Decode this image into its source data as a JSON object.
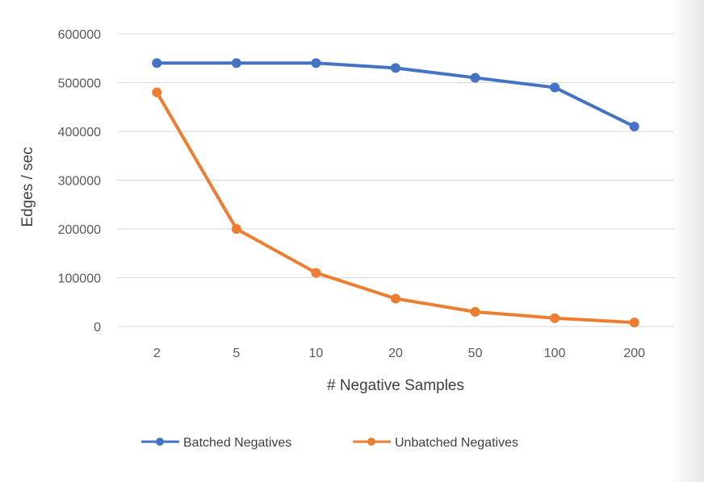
{
  "chart_data": {
    "type": "line",
    "categories": [
      "2",
      "5",
      "10",
      "20",
      "50",
      "100",
      "200"
    ],
    "series": [
      {
        "name": "Batched Negatives",
        "color": "#4472C4",
        "values": [
          540000,
          540000,
          540000,
          530000,
          510000,
          490000,
          410000
        ]
      },
      {
        "name": "Unbatched Negatives",
        "color": "#ED7D31",
        "values": [
          480000,
          200000,
          110000,
          57000,
          30000,
          17000,
          8000
        ]
      }
    ],
    "title": "",
    "xlabel": "# Negative Samples",
    "ylabel": "Edges / sec",
    "ylim": [
      0,
      600000
    ],
    "yticks": [
      "0",
      "100000",
      "200000",
      "300000",
      "400000",
      "500000",
      "600000"
    ],
    "grid": true,
    "legend_position": "bottom"
  }
}
